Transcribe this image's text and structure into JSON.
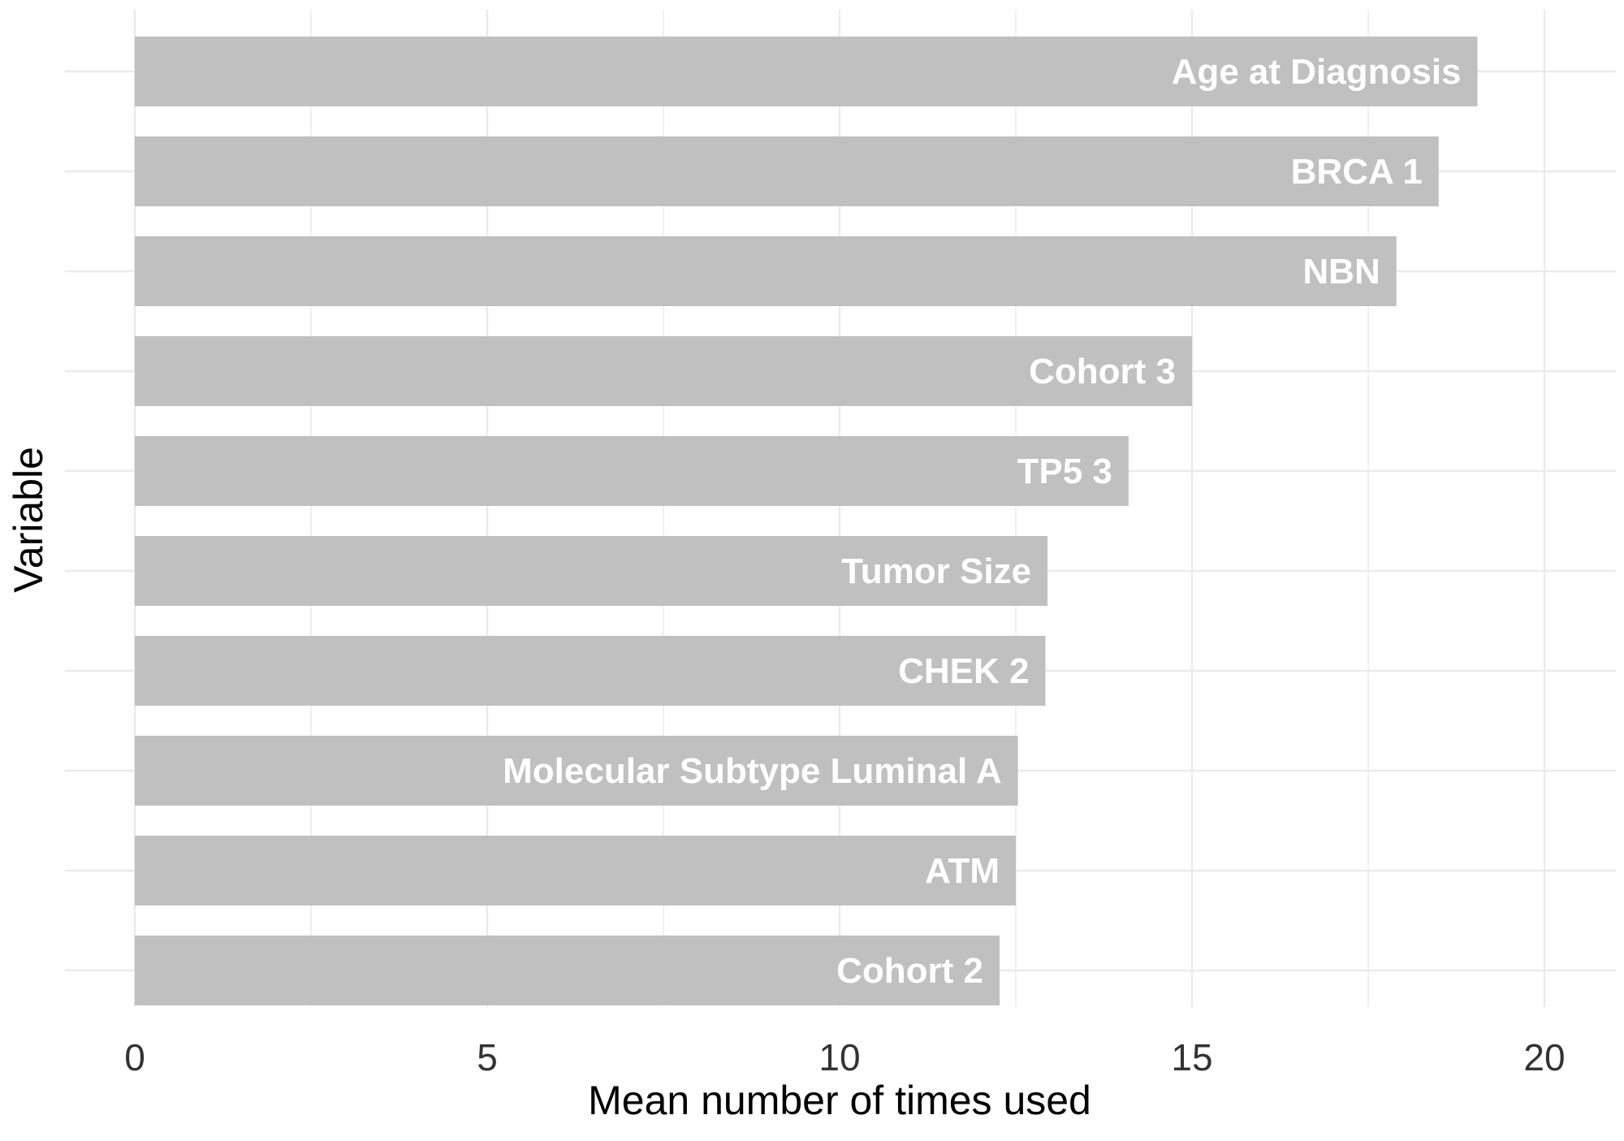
{
  "chart_data": {
    "type": "bar",
    "orientation": "horizontal",
    "xlabel": "Mean number of times used",
    "ylabel": "Variable",
    "xlim": [
      0,
      21
    ],
    "x_ticks": [
      0,
      5,
      10,
      15,
      20
    ],
    "grid": true,
    "legend": "none",
    "bar_color": "#c0c0c0",
    "label_color": "#ffffff",
    "grid_color": "#ebebeb",
    "categories": [
      "Age at Diagnosis",
      "BRCA 1",
      "NBN",
      "Cohort 3",
      "TP5 3",
      "Tumor Size",
      "CHEK 2",
      "Molecular Subtype Luminal A",
      "ATM",
      "Cohort 2"
    ],
    "values": [
      19.05,
      18.5,
      17.9,
      15.0,
      14.1,
      12.95,
      12.92,
      12.53,
      12.5,
      12.27
    ]
  }
}
